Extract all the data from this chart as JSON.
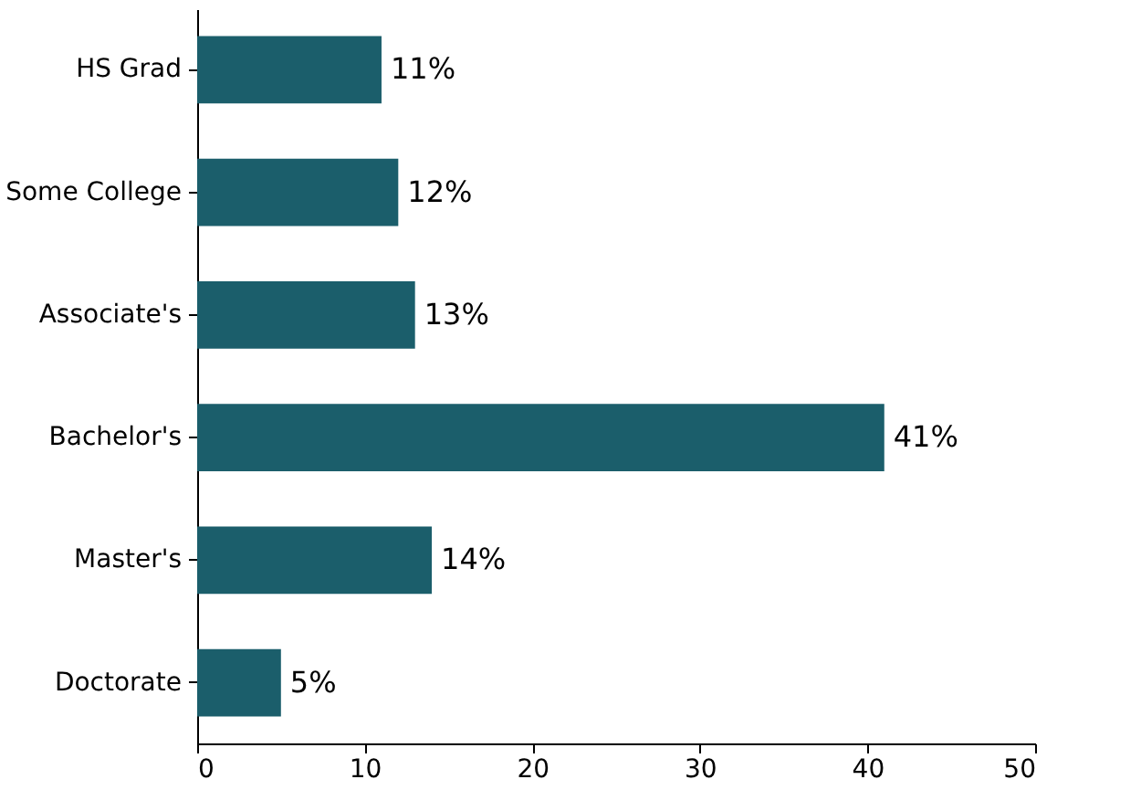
{
  "chart_data": {
    "type": "bar",
    "orientation": "horizontal",
    "categories": [
      "HS Grad",
      "Some College",
      "Associate's",
      "Bachelor's",
      "Master's",
      "Doctorate"
    ],
    "values": [
      11,
      12,
      13,
      41,
      14,
      5
    ],
    "value_labels": [
      "11%",
      "12%",
      "13%",
      "41%",
      "14%",
      "5%"
    ],
    "color": "#1b5e6b",
    "xlim": [
      0,
      50
    ],
    "xticks": [
      0,
      10,
      20,
      30,
      40,
      50
    ],
    "grid": false
  }
}
